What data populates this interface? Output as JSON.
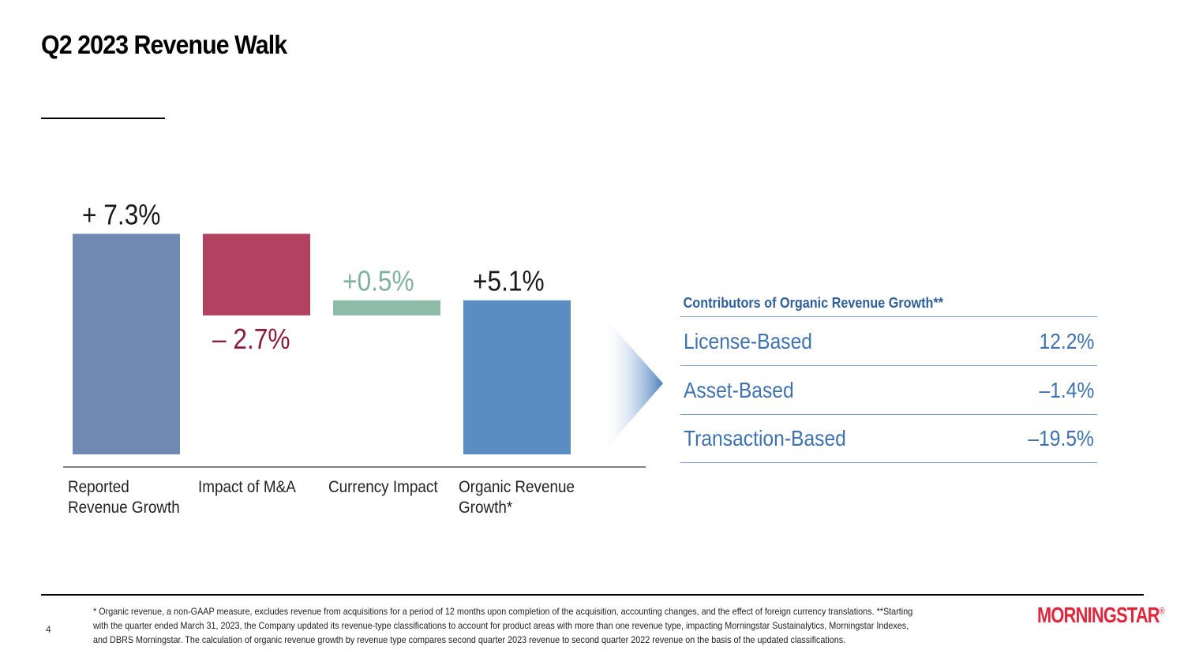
{
  "title": "Q2 2023 Revenue Walk",
  "chart_data": {
    "type": "bar",
    "subtype": "waterfall",
    "categories": [
      "Reported Revenue Growth",
      "Impact of M&A",
      "Currency Impact",
      "Organic Revenue Growth*"
    ],
    "category_lines": [
      [
        "Reported",
        "Revenue Growth"
      ],
      [
        "Impact of M&A"
      ],
      [
        "Currency Impact"
      ],
      [
        "Organic Revenue",
        "Growth*"
      ]
    ],
    "values": [
      7.3,
      -2.7,
      0.5,
      5.1
    ],
    "kinds": [
      "total",
      "delta",
      "delta",
      "total"
    ],
    "labels": [
      "+ 7.3%",
      "– 2.7%",
      "+0.5%",
      "+5.1%"
    ],
    "colors": [
      "#7089b0",
      "#b34160",
      "#8fbca9",
      "#5b8dc2"
    ],
    "label_colors": [
      "#1a1a1a",
      "#8c1c3f",
      "#7fb29b",
      "#1a1a1a"
    ],
    "unit": "%"
  },
  "table": {
    "title": "Contributors of Organic Revenue Growth**",
    "rows": [
      {
        "name": "License-Based",
        "value": "12.2%"
      },
      {
        "name": "Asset-Based",
        "value": "–1.4%"
      },
      {
        "name": "Transaction-Based",
        "value": "–19.5%"
      }
    ]
  },
  "footer": {
    "page_number": "4",
    "footnote": "* Organic revenue, a non-GAAP measure, excludes revenue from acquisitions for a period of 12 months upon completion of the acquisition, accounting changes, and the effect of foreign currency translations. **Starting with the quarter ended March 31, 2023, the Company updated its revenue-type classifications to account for product areas with more than one revenue type, impacting Morningstar Sustainalytics, Morningstar Indexes, and DBRS Morningstar. The calculation of organic revenue growth by revenue type compares second quarter 2023 revenue to second quarter 2022 revenue on the basis of the updated classifications.",
    "logo": "MORNINGSTAR",
    "logo_mark": "®"
  }
}
